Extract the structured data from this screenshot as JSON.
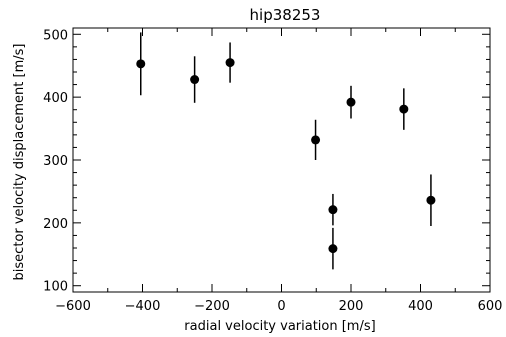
{
  "chart_data": {
    "type": "scatter",
    "title": "hip38253",
    "xlabel": "radial velocity variation [m/s]",
    "ylabel": "bisector velocity displacement [m/s]",
    "xlim": [
      -600,
      600
    ],
    "ylim": [
      90,
      510
    ],
    "xticks": [
      -600,
      -400,
      -200,
      0,
      200,
      400,
      600
    ],
    "xtick_labels": [
      "−600",
      "−400",
      "−200",
      "0",
      "200",
      "400",
      "600"
    ],
    "yticks": [
      100,
      200,
      300,
      400,
      500
    ],
    "ytick_labels": [
      "100",
      "200",
      "300",
      "400",
      "500"
    ],
    "grid": false,
    "points": [
      {
        "x": -405,
        "y": 453,
        "err": 50
      },
      {
        "x": -250,
        "y": 428,
        "err": 37
      },
      {
        "x": -148,
        "y": 455,
        "err": 32
      },
      {
        "x": 98,
        "y": 332,
        "err": 32
      },
      {
        "x": 148,
        "y": 221,
        "err": 25
      },
      {
        "x": 148,
        "y": 159,
        "err": 33
      },
      {
        "x": 200,
        "y": 392,
        "err": 26
      },
      {
        "x": 352,
        "y": 381,
        "err": 33
      },
      {
        "x": 430,
        "y": 236,
        "err": 41
      }
    ]
  }
}
